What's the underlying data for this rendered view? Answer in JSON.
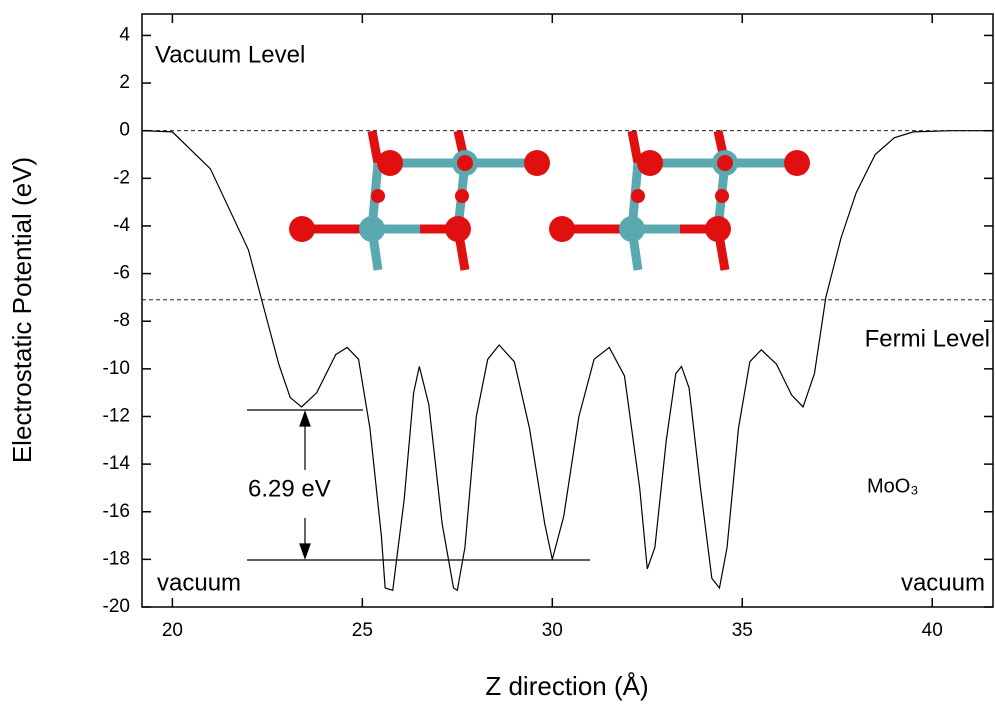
{
  "chart_data": {
    "type": "line",
    "x_label": "Z direction (Å)",
    "y_label": "Electrostatic Potential (eV)",
    "xlim": [
      19.2,
      41.6
    ],
    "xticks": [
      20,
      25,
      30,
      35,
      40
    ],
    "ylim": [
      -20,
      4.9
    ],
    "yticks": [
      -20,
      -18,
      -16,
      -14,
      -12,
      -10,
      -8,
      -6,
      -4,
      -2,
      0,
      2,
      4
    ],
    "hlines": [
      0,
      -7.1
    ],
    "annotations": [
      "Vacuum Level",
      "Fermi Level",
      "vacuum",
      "vacuum",
      "6.29 eV",
      "MoO₃"
    ],
    "series": [
      {
        "color": "#000000",
        "x": [
          19.2,
          20,
          21,
          22,
          22.5,
          22.8,
          23.1,
          23.4,
          23.8,
          24.3,
          24.6,
          24.9,
          25.2,
          25.5,
          25.6,
          25.8,
          26.1,
          26.35,
          26.5,
          26.75,
          27.1,
          27.4,
          27.5,
          27.7,
          28.0,
          28.3,
          28.6,
          29.0,
          29.4,
          29.8,
          30.0,
          30.3,
          30.7,
          31.1,
          31.5,
          31.9,
          32.3,
          32.5,
          32.7,
          33.0,
          33.25,
          33.4,
          33.6,
          33.9,
          34.2,
          34.4,
          34.6,
          34.9,
          35.2,
          35.5,
          35.9,
          36.3,
          36.6,
          36.9,
          37.2,
          37.6,
          38.0,
          38.5,
          39.0,
          39.5,
          40.5,
          41.6
        ],
        "values": [
          0,
          -0.05,
          -1.6,
          -5,
          -8,
          -9.8,
          -11.2,
          -11.6,
          -11,
          -9.4,
          -9.1,
          -9.6,
          -12.5,
          -17,
          -19.2,
          -19.3,
          -15.5,
          -11,
          -9.9,
          -11.5,
          -16.5,
          -19.2,
          -19.3,
          -17.5,
          -12,
          -9.6,
          -9,
          -9.7,
          -12.5,
          -16.5,
          -18,
          -16.2,
          -12,
          -9.6,
          -9.1,
          -10.3,
          -15,
          -18.4,
          -17.5,
          -13,
          -10.2,
          -9.9,
          -10.8,
          -15,
          -18.8,
          -19.2,
          -17.5,
          -12.5,
          -9.7,
          -9.2,
          -9.8,
          -11.1,
          -11.6,
          -10.2,
          -7,
          -4.5,
          -2.6,
          -1,
          -0.3,
          -0.05,
          0,
          0
        ]
      }
    ]
  }
}
